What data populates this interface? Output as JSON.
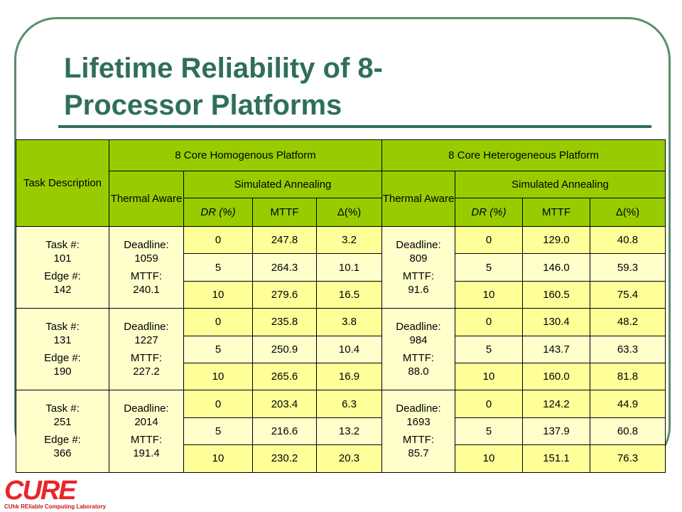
{
  "title": [
    "Lifetime Reliability of 8-",
    "Processor Platforms"
  ],
  "table": {
    "header": {
      "task": "Task Description",
      "homogeneous": "8 Core Homogenous Platform",
      "heterogeneous": "8 Core Heterogeneous Platform",
      "thermal_aware": "Thermal Aware",
      "simulated_annealing": "Simulated Annealing",
      "columns": [
        "DR (%)",
        "MTTF",
        "Δ(%)"
      ]
    },
    "groups": [
      {
        "task": [
          "Task #:",
          "101",
          "Edge #:",
          "142"
        ],
        "homogeneous": {
          "info": [
            "Deadline:",
            "1059",
            "MTTF:",
            "240.1"
          ],
          "rows": [
            [
              "0",
              "247.8",
              "3.2"
            ],
            [
              "5",
              "264.3",
              "10.1"
            ],
            [
              "10",
              "279.6",
              "16.5"
            ]
          ]
        },
        "heterogeneous": {
          "info": [
            "Deadline:",
            "809",
            "MTTF:",
            "91.6"
          ],
          "rows": [
            [
              "0",
              "129.0",
              "40.8"
            ],
            [
              "5",
              "146.0",
              "59.3"
            ],
            [
              "10",
              "160.5",
              "75.4"
            ]
          ]
        }
      },
      {
        "task": [
          "Task #:",
          "131",
          "Edge #:",
          "190"
        ],
        "homogeneous": {
          "info": [
            "Deadline:",
            "1227",
            "MTTF:",
            "227.2"
          ],
          "rows": [
            [
              "0",
              "235.8",
              "3.8"
            ],
            [
              "5",
              "250.9",
              "10.4"
            ],
            [
              "10",
              "265.6",
              "16.9"
            ]
          ]
        },
        "heterogeneous": {
          "info": [
            "Deadline:",
            "984",
            "MTTF:",
            "88.0"
          ],
          "rows": [
            [
              "0",
              "130.4",
              "48.2"
            ],
            [
              "5",
              "143.7",
              "63.3"
            ],
            [
              "10",
              "160.0",
              "81.8"
            ]
          ]
        }
      },
      {
        "task": [
          "Task #:",
          "251",
          "Edge #:",
          "366"
        ],
        "homogeneous": {
          "info": [
            "Deadline:",
            "2014",
            "MTTF:",
            "191.4"
          ],
          "rows": [
            [
              "0",
              "203.4",
              "6.3"
            ],
            [
              "5",
              "216.6",
              "13.2"
            ],
            [
              "10",
              "230.2",
              "20.3"
            ]
          ]
        },
        "heterogeneous": {
          "info": [
            "Deadline:",
            "1693",
            "MTTF:",
            "85.7"
          ],
          "rows": [
            [
              "0",
              "124.2",
              "44.9"
            ],
            [
              "5",
              "137.9",
              "60.8"
            ],
            [
              "10",
              "151.1",
              "76.3"
            ]
          ]
        }
      }
    ]
  },
  "logo": {
    "name": "CURE",
    "subtitle": "CUhk REliable Computing Laboratory"
  }
}
